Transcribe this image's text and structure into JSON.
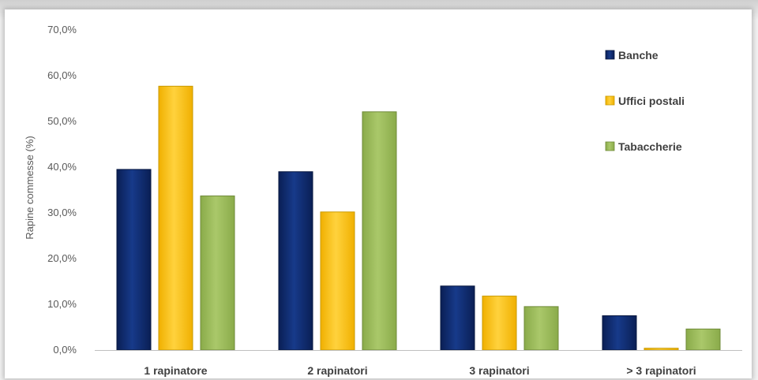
{
  "chart_data": {
    "type": "bar",
    "title": "",
    "xlabel": "",
    "ylabel": "Rapine commesse (%)",
    "ylim": [
      0,
      70
    ],
    "y_ticks": [
      "0,0%",
      "10,0%",
      "20,0%",
      "30,0%",
      "40,0%",
      "50,0%",
      "60,0%",
      "70,0%"
    ],
    "categories": [
      "1 rapinatore",
      "2 rapinatori",
      "3 rapinatori",
      "> 3 rapinatori"
    ],
    "series": [
      {
        "name": "Banche",
        "values": [
          39.5,
          39.0,
          14.0,
          7.5
        ]
      },
      {
        "name": "Uffici postali",
        "values": [
          57.7,
          30.2,
          11.8,
          0.4
        ]
      },
      {
        "name": "Tabaccherie",
        "values": [
          33.7,
          52.1,
          9.5,
          4.6
        ]
      }
    ],
    "legend_position": "top-right",
    "grid": false
  },
  "colors": {
    "Banche": "#0f2a6e",
    "Uffici postali": "#ffc61a",
    "Tabaccherie": "#9bbb59"
  }
}
